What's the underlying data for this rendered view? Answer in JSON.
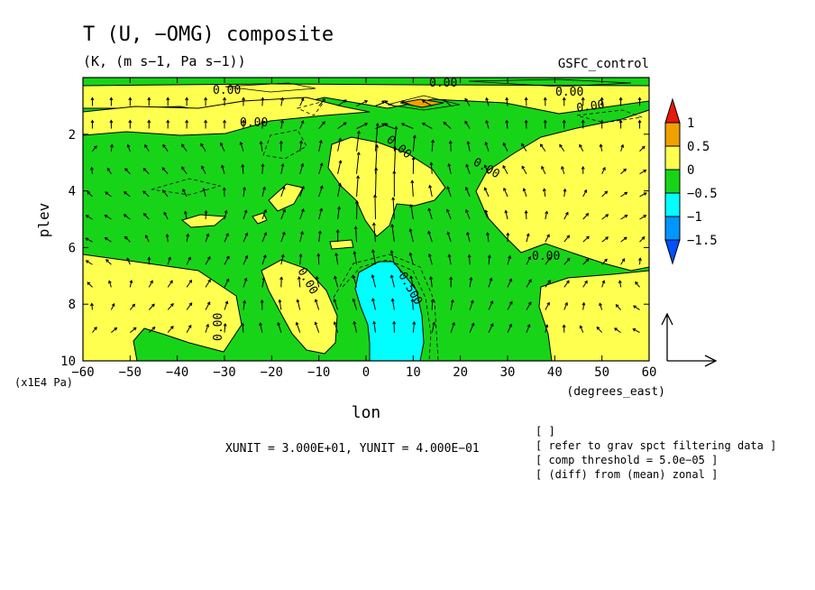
{
  "chart_data": {
    "type": "heatmap",
    "title": "T (U, −OMG) composite",
    "subtitle": "(K, (m s−1, Pa s−1))",
    "experiment": "GSFC_control",
    "xlabel": "lon",
    "xunits": "(degrees_east)",
    "ylabel": "plev",
    "yunits": "(x1E4 Pa)",
    "x_ticks": [
      "−60",
      "−50",
      "−40",
      "−30",
      "−20",
      "−10",
      "0",
      "10",
      "20",
      "30",
      "40",
      "50",
      "60"
    ],
    "x_tick_values": [
      -60,
      -50,
      -40,
      -30,
      -20,
      -10,
      0,
      10,
      20,
      30,
      40,
      50,
      60
    ],
    "y_ticks": [
      "2",
      "4",
      "6",
      "8",
      "10"
    ],
    "y_tick_values": [
      2,
      4,
      6,
      8,
      10
    ],
    "xlim": [
      -60,
      60
    ],
    "ylim": [
      10,
      0
    ],
    "colorbar": {
      "levels": [
        "1",
        "0.5",
        "0",
        "−0.5",
        "−1",
        "−1.5"
      ],
      "colors": [
        "#e8180c",
        "#f0a000",
        "#ffff50",
        "#18d418",
        "#00ffff",
        "#0096ff",
        "#0050ff"
      ]
    },
    "contour_labels": [
      "0.00",
      "0.00",
      "0.00",
      "0.00",
      "0.00",
      "0.00",
      "0.00",
      "0.00",
      "0.00",
      "0.00",
      "0.00",
      "−0.500"
    ],
    "unit_vector_note": "XUNIT = 3.000E+01, YUNIT = 4.000E−01",
    "info_lines": [
      "[  ]",
      "[ refer to grav spct filtering data ]",
      "[ comp threshold = 5.0e−05 ]",
      "[ (diff) from (mean) zonal ]"
    ]
  }
}
